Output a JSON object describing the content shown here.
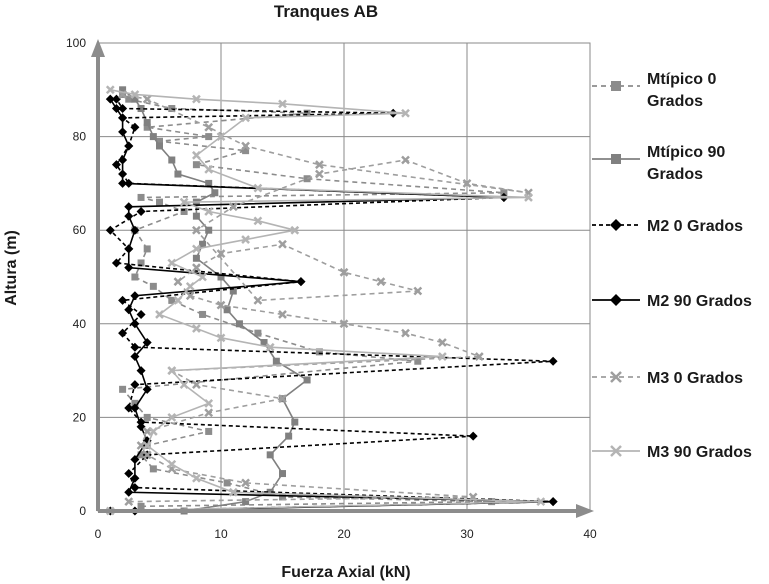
{
  "chart_data": {
    "type": "line",
    "title": "Tranques AB",
    "xlabel": "Fuerza Axial (kN)",
    "ylabel": "Altura (m)",
    "xlim": [
      0,
      40
    ],
    "ylim": [
      0,
      100
    ],
    "x_ticks": [
      "0",
      "10",
      "20",
      "30",
      "40"
    ],
    "y_ticks": [
      "0",
      "20",
      "40",
      "60",
      "80",
      "100"
    ],
    "grid": true,
    "legend_position": "right",
    "series": [
      {
        "name": "Mtípico 0 Grados",
        "legend_lines": [
          "Mtípico 0",
          "Grados"
        ],
        "color": "#8c8c8c",
        "dash": "5,4",
        "marker": "square",
        "x": [
          3.5,
          32,
          15,
          10.5,
          4.5,
          3.5,
          4,
          9,
          4,
          3,
          2,
          26,
          18,
          13,
          8.5,
          6,
          4.5,
          3,
          3.5,
          4,
          3,
          7,
          5,
          3.5,
          33,
          17,
          8,
          12,
          5,
          9,
          4,
          17,
          6,
          2.5,
          2
        ],
        "y": [
          1,
          2,
          3,
          6,
          9,
          12,
          14,
          17,
          20,
          23,
          26,
          32,
          34,
          38,
          42,
          45,
          48,
          50,
          53,
          56,
          60,
          64,
          66,
          67,
          68,
          71,
          74,
          77,
          79,
          80,
          82,
          85,
          86,
          88,
          89
        ]
      },
      {
        "name": "Mtípico 90 Grados",
        "legend_lines": [
          "Mtípico 90",
          "Grados"
        ],
        "color": "#808080",
        "dash": "",
        "marker": "square",
        "x": [
          7,
          12,
          14,
          15,
          14,
          15.5,
          16,
          15,
          17,
          14.5,
          13.5,
          11.5,
          10.5,
          11,
          10,
          8,
          8.5,
          9,
          8,
          8,
          9.5,
          9,
          6.5,
          6,
          5,
          4.5,
          4,
          3.5,
          3,
          2
        ],
        "y": [
          0,
          2,
          4,
          8,
          12,
          16,
          19,
          24,
          28,
          32,
          36,
          40,
          43,
          47,
          50,
          54,
          57,
          60,
          63,
          66,
          68,
          70,
          72,
          75,
          78,
          80,
          83,
          86,
          88,
          90
        ]
      },
      {
        "name": "M2 0 Grados",
        "legend_lines": [
          "M2 0 Grados"
        ],
        "color": "#000000",
        "dash": "4,3",
        "marker": "diamond",
        "x": [
          1,
          37,
          3,
          2.5,
          4,
          30.5,
          3.5,
          2.5,
          3,
          37,
          3,
          2,
          3.5,
          2,
          16.5,
          1.5,
          2.5,
          1,
          3.5,
          33,
          2.5,
          1.5,
          2.5,
          3,
          2,
          24,
          2,
          1.5
        ],
        "y": [
          0,
          2,
          5,
          8,
          12,
          16,
          19,
          22,
          27,
          32,
          35,
          38,
          42,
          45,
          49,
          53,
          56,
          60,
          64,
          67,
          70,
          74,
          78,
          82,
          84,
          85,
          86,
          88
        ]
      },
      {
        "name": "M2 90 Grados",
        "legend_lines": [
          "M2 90 Grados"
        ],
        "color": "#000000",
        "dash": "",
        "marker": "diamond",
        "x": [
          3,
          37,
          2.5,
          3,
          3,
          4,
          3.5,
          3,
          4,
          3.5,
          3,
          4,
          3,
          2.5,
          3,
          16.5,
          2.5,
          2.5,
          3,
          2.5,
          2.5,
          33,
          2,
          2,
          2,
          2.5,
          2,
          2,
          1.5,
          1
        ],
        "y": [
          0,
          2,
          4,
          7,
          11,
          15,
          18,
          22,
          26,
          30,
          33,
          36,
          40,
          43,
          46,
          49,
          52,
          56,
          60,
          63,
          65,
          67,
          70,
          72,
          75,
          78,
          81,
          84,
          86,
          88
        ]
      },
      {
        "name": "M3 0 Grados",
        "legend_lines": [
          "M3 0 Grados"
        ],
        "color": "#9e9e9e",
        "dash": "5,4",
        "marker": "x",
        "x": [
          2.5,
          30.5,
          12,
          6,
          4,
          3.5,
          4,
          9,
          15,
          8,
          6,
          31,
          28,
          25,
          20,
          15,
          10,
          7.5,
          6.5,
          8,
          10,
          15,
          20,
          23,
          26,
          13,
          8,
          11,
          18,
          25,
          30,
          35,
          18,
          12,
          9,
          4,
          2
        ],
        "y": [
          2,
          3,
          6,
          9,
          12,
          14,
          17,
          21,
          24,
          27,
          30,
          33,
          36,
          38,
          40,
          42,
          44,
          46,
          49,
          52,
          55,
          57,
          51,
          49,
          47,
          45,
          60,
          65,
          72,
          75,
          70,
          68,
          74,
          78,
          82,
          88,
          89
        ]
      },
      {
        "name": "M3 90 Grados",
        "legend_lines": [
          "M3 90 Grados"
        ],
        "color": "#b4b4b4",
        "dash": "",
        "marker": "x",
        "x": [
          1,
          36,
          11,
          8,
          6,
          4,
          4.5,
          6,
          9,
          7,
          6,
          28,
          14,
          10,
          8,
          5,
          6.5,
          7.5,
          8.5,
          6,
          8,
          12,
          16,
          13,
          9,
          7,
          35,
          13,
          9,
          8,
          10,
          12,
          25,
          15,
          8,
          3,
          1
        ],
        "y": [
          0,
          2,
          4,
          7,
          10,
          14,
          17,
          20,
          23,
          27,
          30,
          33,
          35,
          37,
          39,
          42,
          45,
          48,
          50,
          53,
          56,
          58,
          60,
          62,
          64,
          66,
          67,
          69,
          73,
          76,
          80,
          84,
          85,
          87,
          88,
          89,
          90
        ]
      }
    ]
  }
}
